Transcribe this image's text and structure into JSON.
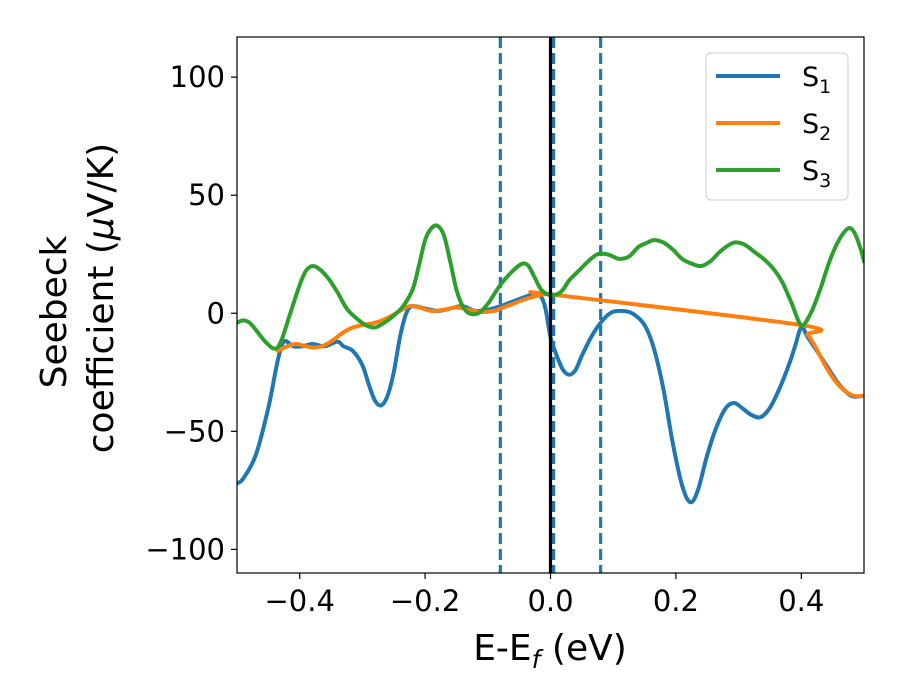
{
  "chart_data": {
    "type": "line",
    "xlabel": "E-E",
    "xlabel_sub": "f",
    "xlabel_unit": " (eV)",
    "ylabel_line1": "Seebeck",
    "ylabel_line2_prefix": "coefficient  (",
    "ylabel_mu": "μ",
    "ylabel_line2_suffix": "V/K)",
    "xlim": [
      -0.5,
      0.5
    ],
    "ylim": [
      -110,
      117
    ],
    "xticks": [
      -0.4,
      -0.2,
      0.0,
      0.2,
      0.4
    ],
    "xtick_labels": [
      "−0.4",
      "−0.2",
      "0.0",
      "0.2",
      "0.4"
    ],
    "yticks": [
      100,
      50,
      0,
      -50,
      -100
    ],
    "ytick_labels": [
      "100",
      "50",
      "0",
      "−50",
      "−100"
    ],
    "grid": false,
    "legend_position": "top-right",
    "vlines": [
      {
        "x": -0.08,
        "style": "dashed",
        "color": "#1f77b4"
      },
      {
        "x": 0.0,
        "style": "solid",
        "color": "#000000"
      },
      {
        "x": 0.005,
        "style": "dashed",
        "color": "#1f77b4"
      },
      {
        "x": 0.08,
        "style": "dashed",
        "color": "#1f77b4"
      }
    ],
    "series": [
      {
        "name": "S",
        "sub": "1",
        "color": "#1f77b4",
        "points": [
          [
            -0.5,
            -72
          ],
          [
            -0.49,
            -70
          ],
          [
            -0.47,
            -60
          ],
          [
            -0.45,
            -40
          ],
          [
            -0.435,
            -20
          ],
          [
            -0.425,
            -12
          ],
          [
            -0.41,
            -14
          ],
          [
            -0.395,
            -14
          ],
          [
            -0.38,
            -13
          ],
          [
            -0.36,
            -14
          ],
          [
            -0.34,
            -12
          ],
          [
            -0.33,
            -14
          ],
          [
            -0.315,
            -16
          ],
          [
            -0.3,
            -22
          ],
          [
            -0.29,
            -30
          ],
          [
            -0.28,
            -37
          ],
          [
            -0.27,
            -39
          ],
          [
            -0.26,
            -35
          ],
          [
            -0.25,
            -25
          ],
          [
            -0.24,
            -10
          ],
          [
            -0.23,
            0
          ],
          [
            -0.22,
            3
          ],
          [
            -0.2,
            2
          ],
          [
            -0.18,
            1
          ],
          [
            -0.16,
            2
          ],
          [
            -0.14,
            3
          ],
          [
            -0.12,
            1
          ],
          [
            -0.1,
            1.5
          ],
          [
            -0.08,
            3
          ],
          [
            -0.06,
            5
          ],
          [
            -0.04,
            7
          ],
          [
            -0.025,
            8
          ],
          [
            -0.015,
            7
          ],
          [
            -0.008,
            2
          ],
          [
            0.0,
            -10
          ],
          [
            0.01,
            -18
          ],
          [
            0.02,
            -24
          ],
          [
            0.03,
            -26
          ],
          [
            0.04,
            -24
          ],
          [
            0.05,
            -18
          ],
          [
            0.065,
            -10
          ],
          [
            0.08,
            -4
          ],
          [
            0.095,
            0
          ],
          [
            0.11,
            1
          ],
          [
            0.13,
            0
          ],
          [
            0.15,
            -5
          ],
          [
            0.165,
            -15
          ],
          [
            0.18,
            -32
          ],
          [
            0.195,
            -55
          ],
          [
            0.21,
            -73
          ],
          [
            0.223,
            -80
          ],
          [
            0.235,
            -75
          ],
          [
            0.25,
            -60
          ],
          [
            0.265,
            -48
          ],
          [
            0.28,
            -40
          ],
          [
            0.293,
            -38
          ],
          [
            0.305,
            -40
          ],
          [
            0.32,
            -43
          ],
          [
            0.335,
            -44
          ],
          [
            0.35,
            -40
          ],
          [
            0.365,
            -32
          ],
          [
            0.38,
            -22
          ],
          [
            0.39,
            -14
          ],
          [
            0.4,
            -6
          ],
          [
            0.41,
            -10
          ],
          [
            0.42,
            -14
          ],
          [
            0.44,
            -22
          ],
          [
            0.46,
            -30
          ],
          [
            0.48,
            -35
          ],
          [
            0.5,
            -35
          ]
        ]
      },
      {
        "name": "S",
        "sub": "2",
        "color": "#ff7f0e",
        "points": [
          [
            -0.435,
            -16
          ],
          [
            -0.42,
            -14
          ],
          [
            -0.405,
            -13
          ],
          [
            -0.39,
            -14
          ],
          [
            -0.375,
            -14.5
          ],
          [
            -0.36,
            -13.5
          ],
          [
            -0.345,
            -11
          ],
          [
            -0.33,
            -8
          ],
          [
            -0.315,
            -6
          ],
          [
            -0.3,
            -5
          ],
          [
            -0.28,
            -4
          ],
          [
            -0.26,
            -2
          ],
          [
            -0.24,
            1
          ],
          [
            -0.225,
            3
          ],
          [
            -0.21,
            2.5
          ],
          [
            -0.19,
            1
          ],
          [
            -0.17,
            1.5
          ],
          [
            -0.15,
            2.5
          ],
          [
            -0.13,
            1.5
          ],
          [
            -0.11,
            0.5
          ],
          [
            -0.09,
            1
          ],
          [
            -0.08,
            2
          ],
          [
            -0.06,
            4
          ],
          [
            -0.04,
            6
          ],
          [
            -0.02,
            7.5
          ],
          [
            -0.01,
            8
          ],
          [
            0.0,
            8
          ],
          [
            0.4,
            -5
          ],
          [
            0.41,
            -9
          ],
          [
            0.42,
            -13
          ],
          [
            0.43,
            -18
          ],
          [
            0.44,
            -23
          ],
          [
            0.455,
            -29
          ],
          [
            0.47,
            -33
          ],
          [
            0.485,
            -35
          ],
          [
            0.5,
            -35
          ]
        ]
      },
      {
        "name": "S",
        "sub": "3",
        "color": "#2ca02c",
        "points": [
          [
            -0.5,
            -4
          ],
          [
            -0.49,
            -3
          ],
          [
            -0.48,
            -4
          ],
          [
            -0.47,
            -7
          ],
          [
            -0.455,
            -12
          ],
          [
            -0.44,
            -15
          ],
          [
            -0.43,
            -12
          ],
          [
            -0.415,
            0
          ],
          [
            -0.4,
            12
          ],
          [
            -0.39,
            18
          ],
          [
            -0.38,
            20
          ],
          [
            -0.37,
            19
          ],
          [
            -0.355,
            15
          ],
          [
            -0.34,
            9
          ],
          [
            -0.325,
            2
          ],
          [
            -0.31,
            -2
          ],
          [
            -0.295,
            -5
          ],
          [
            -0.28,
            -6
          ],
          [
            -0.265,
            -4
          ],
          [
            -0.25,
            -1
          ],
          [
            -0.235,
            3
          ],
          [
            -0.22,
            10
          ],
          [
            -0.21,
            20
          ],
          [
            -0.2,
            31
          ],
          [
            -0.19,
            36
          ],
          [
            -0.18,
            37
          ],
          [
            -0.17,
            33
          ],
          [
            -0.16,
            22
          ],
          [
            -0.15,
            10
          ],
          [
            -0.14,
            3
          ],
          [
            -0.13,
            0
          ],
          [
            -0.115,
            0
          ],
          [
            -0.1,
            4
          ],
          [
            -0.08,
            12
          ],
          [
            -0.06,
            18
          ],
          [
            -0.045,
            21
          ],
          [
            -0.035,
            20
          ],
          [
            -0.025,
            15
          ],
          [
            -0.015,
            10
          ],
          [
            -0.005,
            8
          ],
          [
            0.0,
            8
          ],
          [
            0.01,
            8
          ],
          [
            0.02,
            10
          ],
          [
            0.03,
            14
          ],
          [
            0.045,
            18
          ],
          [
            0.06,
            22
          ],
          [
            0.075,
            25
          ],
          [
            0.09,
            25
          ],
          [
            0.1,
            24
          ],
          [
            0.11,
            23
          ],
          [
            0.125,
            24
          ],
          [
            0.14,
            28
          ],
          [
            0.155,
            30
          ],
          [
            0.165,
            31
          ],
          [
            0.18,
            30
          ],
          [
            0.195,
            27
          ],
          [
            0.21,
            23
          ],
          [
            0.225,
            21
          ],
          [
            0.24,
            20
          ],
          [
            0.255,
            22
          ],
          [
            0.27,
            26
          ],
          [
            0.285,
            29
          ],
          [
            0.295,
            30
          ],
          [
            0.31,
            29
          ],
          [
            0.325,
            26
          ],
          [
            0.34,
            23
          ],
          [
            0.355,
            19
          ],
          [
            0.37,
            13
          ],
          [
            0.385,
            4
          ],
          [
            0.4,
            -5
          ],
          [
            0.415,
            0
          ],
          [
            0.43,
            10
          ],
          [
            0.445,
            22
          ],
          [
            0.46,
            31
          ],
          [
            0.475,
            36
          ],
          [
            0.485,
            34
          ],
          [
            0.495,
            27
          ],
          [
            0.5,
            22
          ]
        ]
      }
    ]
  }
}
